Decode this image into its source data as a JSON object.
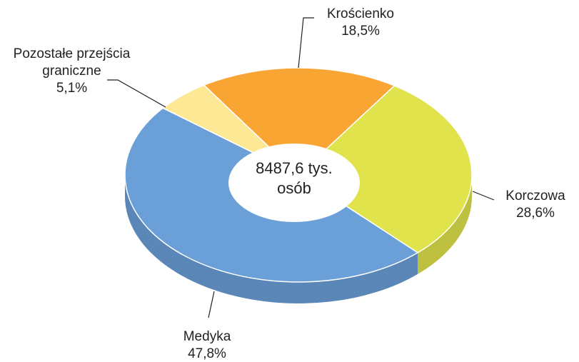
{
  "chart_data": {
    "type": "pie",
    "center_label": "8487,6 tys. osób",
    "categories": [
      "Krościenko",
      "Korczowa",
      "Medyka",
      "Pozostałe przejścia graniczne"
    ],
    "values": [
      18.5,
      28.6,
      47.8,
      5.1
    ],
    "value_labels": [
      "18,5%",
      "28,6%",
      "47,8%",
      "5,1%"
    ],
    "colors": [
      "#f9a533",
      "#e0e34b",
      "#6a9fd8",
      "#fde896"
    ]
  }
}
